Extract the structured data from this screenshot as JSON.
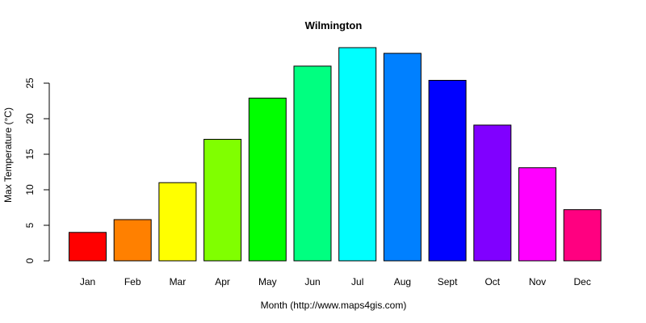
{
  "chart_data": {
    "type": "bar",
    "title": "Wilmington",
    "xlabel": "Month (http://www.maps4gis.com)",
    "ylabel": "Max Temperature (°C)",
    "categories": [
      "Jan",
      "Feb",
      "Mar",
      "Apr",
      "May",
      "Jun",
      "Jul",
      "Aug",
      "Sept",
      "Oct",
      "Nov",
      "Dec"
    ],
    "values": [
      4.0,
      5.8,
      11.0,
      17.1,
      22.9,
      27.4,
      30.0,
      29.2,
      25.4,
      19.1,
      13.1,
      7.2
    ],
    "colors": [
      "#FF0000",
      "#FF8000",
      "#FFFF00",
      "#80FF00",
      "#00FF00",
      "#00FF80",
      "#00FFFF",
      "#0080FF",
      "#0000FF",
      "#8000FF",
      "#FF00FF",
      "#FF0080"
    ],
    "yticks": [
      0,
      5,
      10,
      15,
      20,
      25
    ],
    "ylim": [
      0,
      30
    ],
    "grid": false,
    "legend": "none"
  }
}
